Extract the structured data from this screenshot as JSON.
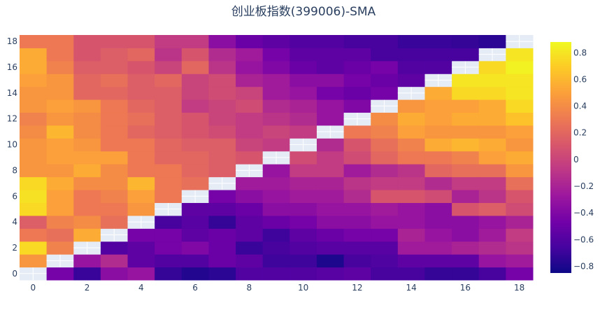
{
  "chart_data": {
    "type": "heatmap",
    "title": "创业板指数(399006)-SMA",
    "x": [
      0,
      1,
      2,
      3,
      4,
      5,
      6,
      7,
      8,
      9,
      10,
      11,
      12,
      13,
      14,
      15,
      16,
      17,
      18
    ],
    "y": [
      0,
      1,
      2,
      3,
      4,
      5,
      6,
      7,
      8,
      9,
      10,
      11,
      12,
      13,
      14,
      15,
      16,
      17,
      18
    ],
    "x_ticks": [
      "0",
      "2",
      "4",
      "6",
      "8",
      "10",
      "12",
      "14",
      "16",
      "18"
    ],
    "y_ticks": [
      "0",
      "2",
      "4",
      "6",
      "8",
      "10",
      "12",
      "14",
      "16",
      "18"
    ],
    "colorbar": {
      "range": [
        -0.85,
        0.88
      ],
      "ticks": [
        "0.8",
        "0.6",
        "0.4",
        "0.2",
        "0",
        "−0.2",
        "−0.4",
        "−0.6",
        "−0.8"
      ],
      "tick_values": [
        0.8,
        0.6,
        0.4,
        0.2,
        0,
        -0.2,
        -0.4,
        -0.6,
        -0.8
      ]
    },
    "colorscale": [
      "#0d0887",
      "#46039f",
      "#7201a8",
      "#9c179e",
      "#bd3786",
      "#d8576b",
      "#ed7953",
      "#fb9f3a",
      "#fdca26",
      "#f0f921"
    ],
    "diagonal_missing": true,
    "grid": false,
    "z": [
      [
        null,
        -0.45,
        -0.7,
        -0.35,
        -0.3,
        -0.72,
        -0.78,
        -0.75,
        -0.6,
        -0.6,
        -0.6,
        -0.58,
        -0.55,
        -0.65,
        -0.65,
        -0.72,
        -0.72,
        -0.65,
        -0.45
      ],
      [
        0.45,
        null,
        -0.3,
        -0.15,
        -0.55,
        -0.6,
        -0.6,
        -0.5,
        -0.55,
        -0.68,
        -0.68,
        -0.8,
        -0.65,
        -0.62,
        -0.55,
        -0.55,
        -0.55,
        -0.3,
        -0.25
      ],
      [
        0.75,
        0.35,
        null,
        -0.6,
        -0.55,
        -0.45,
        -0.4,
        -0.5,
        -0.7,
        -0.65,
        -0.6,
        -0.58,
        -0.58,
        -0.58,
        -0.25,
        -0.25,
        -0.2,
        -0.15,
        -0.1
      ],
      [
        0.3,
        0.25,
        0.55,
        null,
        -0.45,
        -0.45,
        -0.55,
        -0.5,
        -0.55,
        -0.68,
        -0.55,
        -0.5,
        -0.45,
        -0.45,
        -0.2,
        -0.3,
        -0.35,
        -0.25,
        -0.05
      ],
      [
        0.15,
        0.35,
        0.4,
        0.25,
        null,
        -0.65,
        -0.58,
        -0.72,
        -0.55,
        -0.5,
        -0.45,
        -0.35,
        -0.35,
        -0.3,
        -0.3,
        -0.35,
        -0.35,
        -0.3,
        -0.2
      ],
      [
        0.75,
        0.5,
        0.3,
        0.3,
        0.45,
        null,
        -0.55,
        -0.55,
        -0.5,
        -0.35,
        -0.35,
        -0.3,
        -0.3,
        -0.25,
        -0.3,
        -0.35,
        0.1,
        0.15,
        0.05
      ],
      [
        0.78,
        0.5,
        0.3,
        0.35,
        0.5,
        0.3,
        null,
        -0.45,
        -0.35,
        -0.3,
        -0.25,
        -0.25,
        -0.15,
        0.1,
        0.1,
        0.05,
        -0.2,
        -0.1,
        0.1
      ],
      [
        0.75,
        0.55,
        0.4,
        0.4,
        0.6,
        0.3,
        0.25,
        null,
        -0.25,
        -0.25,
        -0.2,
        -0.2,
        -0.1,
        -0.05,
        -0.05,
        -0.15,
        -0.05,
        -0.05,
        0.25
      ],
      [
        0.45,
        0.45,
        0.55,
        0.4,
        0.3,
        0.3,
        0.2,
        0.15,
        null,
        -0.3,
        -0.05,
        -0.05,
        -0.25,
        -0.15,
        -0.1,
        0.2,
        0.25,
        0.25,
        0.45
      ],
      [
        0.45,
        0.5,
        0.5,
        0.5,
        0.3,
        0.2,
        0.2,
        0.15,
        0.1,
        null,
        0.05,
        -0.05,
        0.05,
        0.2,
        0.3,
        0.3,
        0.35,
        0.5,
        0.55
      ],
      [
        0.45,
        0.5,
        0.45,
        0.3,
        0.3,
        0.2,
        0.15,
        0.15,
        0.0,
        -0.05,
        null,
        -0.15,
        0.1,
        0.25,
        0.35,
        0.55,
        0.6,
        0.55,
        0.45
      ],
      [
        0.4,
        0.6,
        0.4,
        0.3,
        0.2,
        0.15,
        0.1,
        0.05,
        -0.05,
        0.0,
        -0.05,
        null,
        0.3,
        0.35,
        0.5,
        0.45,
        0.45,
        0.45,
        0.5
      ],
      [
        0.35,
        0.45,
        0.4,
        0.3,
        0.25,
        0.15,
        0.1,
        0.0,
        -0.05,
        -0.1,
        -0.15,
        -0.3,
        null,
        0.4,
        0.55,
        0.5,
        0.55,
        0.55,
        0.65
      ],
      [
        0.45,
        0.5,
        0.45,
        0.3,
        0.2,
        0.15,
        -0.05,
        0.0,
        0.05,
        -0.15,
        -0.2,
        -0.3,
        -0.4,
        null,
        0.45,
        0.5,
        0.5,
        0.55,
        0.75
      ],
      [
        0.45,
        0.45,
        0.2,
        0.2,
        0.15,
        0.15,
        0.0,
        0.05,
        0.0,
        -0.25,
        -0.3,
        -0.45,
        -0.5,
        -0.45,
        null,
        0.55,
        0.75,
        0.75,
        0.8
      ],
      [
        0.5,
        0.45,
        0.2,
        0.25,
        0.15,
        0.2,
        0.0,
        0.05,
        -0.2,
        -0.25,
        -0.35,
        -0.35,
        -0.45,
        -0.5,
        -0.55,
        null,
        0.8,
        0.8,
        0.8
      ],
      [
        0.55,
        0.35,
        0.15,
        0.15,
        0.1,
        0.0,
        0.2,
        -0.1,
        -0.3,
        -0.4,
        -0.5,
        -0.55,
        -0.5,
        -0.45,
        -0.6,
        -0.6,
        null,
        0.75,
        0.85
      ],
      [
        0.55,
        0.3,
        0.1,
        0.15,
        0.2,
        -0.1,
        0.1,
        -0.15,
        -0.25,
        -0.45,
        -0.55,
        -0.55,
        -0.55,
        -0.65,
        -0.65,
        -0.65,
        -0.65,
        null,
        0.8
      ],
      [
        0.3,
        0.3,
        0.1,
        0.1,
        0.1,
        -0.05,
        -0.05,
        -0.35,
        -0.5,
        -0.55,
        -0.6,
        -0.6,
        -0.65,
        -0.65,
        -0.7,
        -0.7,
        -0.72,
        -0.75,
        null
      ]
    ]
  }
}
